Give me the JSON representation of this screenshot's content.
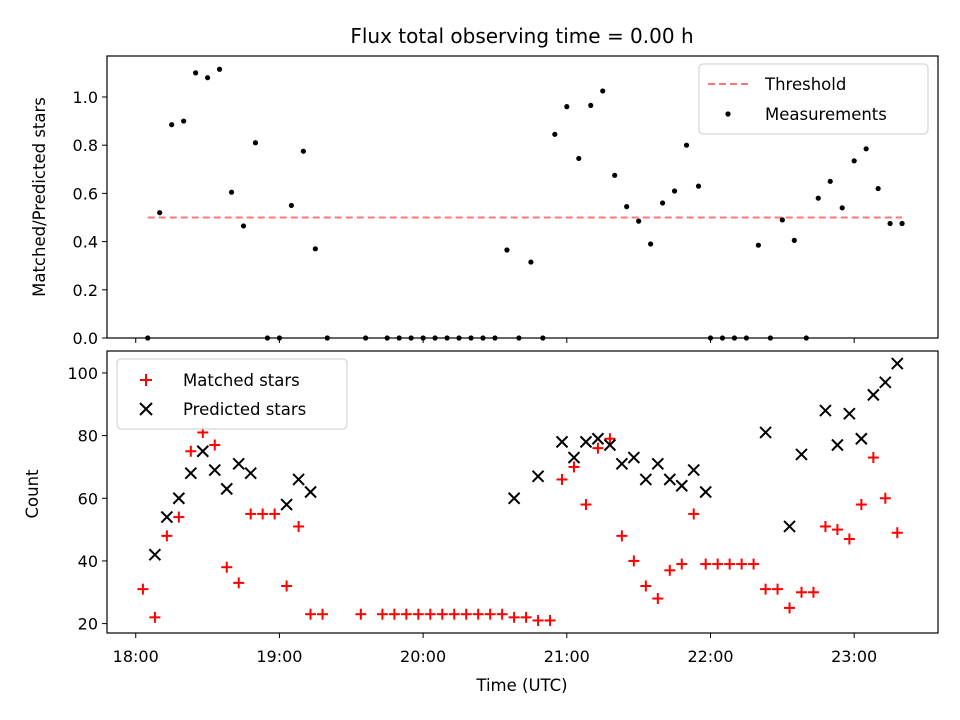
{
  "chart_data": [
    {
      "type": "scatter",
      "title": "Flux total observing time = 0.00 h",
      "ylabel": "Matched/Predicted stars",
      "xlim": [
        "17:48",
        "23:35"
      ],
      "ylim": [
        0,
        1.17
      ],
      "yticks": [
        "0.0",
        "0.2",
        "0.4",
        "0.6",
        "0.8",
        "1.0"
      ],
      "legend_position": "top-right",
      "threshold": {
        "name": "Threshold",
        "value": 0.5,
        "x_range": [
          "18:05",
          "23:20"
        ],
        "color": "#ff7777",
        "style": "dashed"
      },
      "series": [
        {
          "name": "Measurements",
          "color": "#000000",
          "marker": "dot",
          "x": [
            "18:05",
            "18:10",
            "18:15",
            "18:20",
            "18:25",
            "18:30",
            "18:35",
            "18:40",
            "18:45",
            "18:50",
            "18:55",
            "19:00",
            "19:05",
            "19:10",
            "19:15",
            "19:20",
            "19:36",
            "19:45",
            "19:50",
            "19:55",
            "20:00",
            "20:05",
            "20:10",
            "20:15",
            "20:20",
            "20:25",
            "20:30",
            "20:35",
            "20:40",
            "20:45",
            "20:50",
            "20:55",
            "21:00",
            "21:05",
            "21:10",
            "21:15",
            "21:20",
            "21:25",
            "21:30",
            "21:35",
            "21:40",
            "21:45",
            "21:50",
            "21:55",
            "22:00",
            "22:05",
            "22:10",
            "22:15",
            "22:20",
            "22:25",
            "22:30",
            "22:35",
            "22:40",
            "22:45",
            "22:50",
            "22:55",
            "23:00",
            "23:05",
            "23:10",
            "23:15",
            "23:20"
          ],
          "y": [
            0.0,
            0.52,
            0.885,
            0.9,
            1.1,
            1.08,
            1.115,
            0.605,
            0.465,
            0.81,
            0.0,
            0.0,
            0.55,
            0.775,
            0.37,
            0.0,
            0.0,
            0.0,
            0.0,
            0.0,
            0.0,
            0.0,
            0.0,
            0.0,
            0.0,
            0.0,
            0.0,
            0.365,
            0.0,
            0.315,
            0.0,
            0.845,
            0.96,
            0.745,
            0.965,
            1.025,
            0.675,
            0.545,
            0.485,
            0.39,
            0.56,
            0.61,
            0.8,
            0.63,
            0.0,
            0.0,
            0.0,
            0.0,
            0.385,
            0.0,
            0.49,
            0.405,
            0.0,
            0.58,
            0.65,
            0.54,
            0.735,
            0.785,
            0.62,
            0.475,
            0.475
          ]
        }
      ]
    },
    {
      "type": "scatter",
      "xlabel": "Time (UTC)",
      "ylabel": "Count",
      "xlim": [
        "17:48",
        "23:35"
      ],
      "ylim": [
        17,
        107
      ],
      "xticks": [
        "18:00",
        "19:00",
        "20:00",
        "21:00",
        "22:00",
        "23:00"
      ],
      "yticks": [
        "20",
        "40",
        "60",
        "80",
        "100"
      ],
      "legend_position": "top-left",
      "series": [
        {
          "name": "Matched stars",
          "color": "#ff0000",
          "marker": "plus",
          "x": [
            "18:03",
            "18:08",
            "18:13",
            "18:18",
            "18:23",
            "18:28",
            "18:33",
            "18:38",
            "18:43",
            "18:48",
            "18:53",
            "18:58",
            "19:03",
            "19:08",
            "19:13",
            "19:18",
            "19:34",
            "19:43",
            "19:48",
            "19:53",
            "19:58",
            "20:03",
            "20:08",
            "20:13",
            "20:18",
            "20:23",
            "20:28",
            "20:33",
            "20:38",
            "20:43",
            "20:48",
            "20:53",
            "20:58",
            "21:03",
            "21:08",
            "21:13",
            "21:18",
            "21:23",
            "21:28",
            "21:33",
            "21:38",
            "21:43",
            "21:48",
            "21:53",
            "21:58",
            "22:03",
            "22:08",
            "22:13",
            "22:18",
            "22:23",
            "22:28",
            "22:33",
            "22:38",
            "22:43",
            "22:48",
            "22:53",
            "22:58",
            "23:03",
            "23:08",
            "23:13",
            "23:18"
          ],
          "y": [
            31,
            22,
            48,
            54,
            75,
            81,
            77,
            38,
            33,
            55,
            55,
            55,
            32,
            51,
            23,
            23,
            23,
            23,
            23,
            23,
            23,
            23,
            23,
            23,
            23,
            23,
            23,
            23,
            22,
            22,
            21,
            21,
            66,
            70,
            58,
            76,
            79,
            48,
            40,
            32,
            28,
            37,
            39,
            55,
            39,
            39,
            39,
            39,
            39,
            31,
            31,
            25,
            30,
            30,
            51,
            50,
            47,
            58,
            73,
            60,
            49
          ]
        },
        {
          "name": "Predicted stars",
          "color": "#000000",
          "marker": "x",
          "x": [
            "18:08",
            "18:13",
            "18:18",
            "18:23",
            "18:28",
            "18:33",
            "18:38",
            "18:43",
            "18:48",
            "19:03",
            "19:08",
            "19:13",
            "20:38",
            "20:48",
            "20:58",
            "21:03",
            "21:08",
            "21:13",
            "21:18",
            "21:23",
            "21:28",
            "21:33",
            "21:38",
            "21:43",
            "21:48",
            "21:53",
            "21:58",
            "22:23",
            "22:33",
            "22:38",
            "22:48",
            "22:53",
            "22:58",
            "23:03",
            "23:08",
            "23:13",
            "23:18"
          ],
          "y": [
            42,
            54,
            60,
            68,
            75,
            69,
            63,
            71,
            68,
            58,
            66,
            62,
            60,
            67,
            78,
            73,
            78,
            79,
            77,
            71,
            73,
            66,
            71,
            66,
            64,
            69,
            62,
            81,
            51,
            74,
            88,
            77,
            87,
            79,
            93,
            97,
            103
          ]
        }
      ]
    }
  ]
}
